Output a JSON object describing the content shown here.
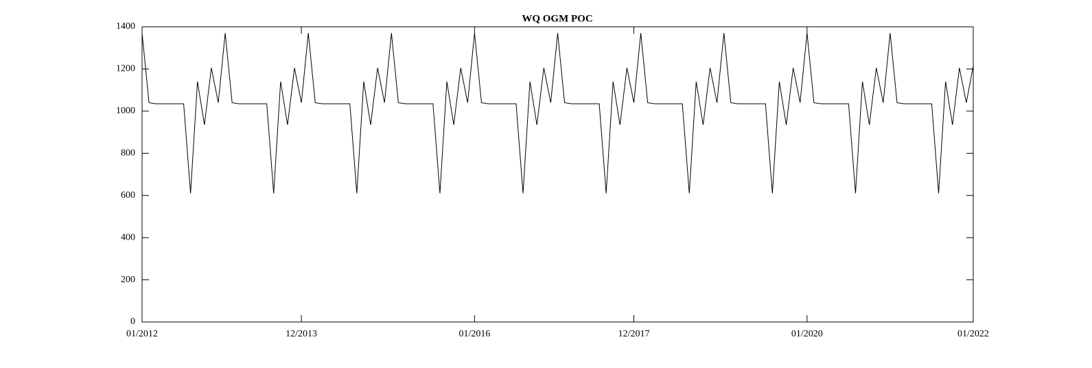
{
  "chart_data": {
    "type": "line",
    "title": "WQ OGM POC",
    "x": [
      "01/2012",
      "02/2012",
      "03/2012",
      "04/2012",
      "05/2012",
      "06/2012",
      "07/2012",
      "08/2012",
      "09/2012",
      "10/2012",
      "11/2012",
      "12/2012",
      "01/2013",
      "02/2013",
      "03/2013",
      "04/2013",
      "05/2013",
      "06/2013",
      "07/2013",
      "08/2013",
      "09/2013",
      "10/2013",
      "11/2013",
      "12/2013",
      "01/2014",
      "02/2014",
      "03/2014",
      "04/2014",
      "05/2014",
      "06/2014",
      "07/2014",
      "08/2014",
      "09/2014",
      "10/2014",
      "11/2014",
      "12/2014",
      "01/2015",
      "02/2015",
      "03/2015",
      "04/2015",
      "05/2015",
      "06/2015",
      "07/2015",
      "08/2015",
      "09/2015",
      "10/2015",
      "11/2015",
      "12/2015",
      "01/2016",
      "02/2016",
      "03/2016",
      "04/2016",
      "05/2016",
      "06/2016",
      "07/2016",
      "08/2016",
      "09/2016",
      "10/2016",
      "11/2016",
      "12/2016",
      "01/2017",
      "02/2017",
      "03/2017",
      "04/2017",
      "05/2017",
      "06/2017",
      "07/2017",
      "08/2017",
      "09/2017",
      "10/2017",
      "11/2017",
      "12/2017",
      "01/2018",
      "02/2018",
      "03/2018",
      "04/2018",
      "05/2018",
      "06/2018",
      "07/2018",
      "08/2018",
      "09/2018",
      "10/2018",
      "11/2018",
      "12/2018",
      "01/2019",
      "02/2019",
      "03/2019",
      "04/2019",
      "05/2019",
      "06/2019",
      "07/2019",
      "08/2019",
      "09/2019",
      "10/2019",
      "11/2019",
      "12/2019",
      "01/2020",
      "02/2020",
      "03/2020",
      "04/2020",
      "05/2020",
      "06/2020",
      "07/2020",
      "08/2020",
      "09/2020",
      "10/2020",
      "11/2020",
      "12/2020",
      "01/2021",
      "02/2021",
      "03/2021",
      "04/2021",
      "05/2021",
      "06/2021",
      "07/2021",
      "08/2021",
      "09/2021",
      "10/2021",
      "11/2021",
      "12/2021",
      "01/2022"
    ],
    "values": [
      1370,
      1040,
      1035,
      1035,
      1035,
      1035,
      1035,
      610,
      1140,
      935,
      1205,
      1040,
      1370,
      1040,
      1035,
      1035,
      1035,
      1035,
      1035,
      610,
      1140,
      935,
      1205,
      1040,
      1370,
      1040,
      1035,
      1035,
      1035,
      1035,
      1035,
      610,
      1140,
      935,
      1205,
      1040,
      1370,
      1040,
      1035,
      1035,
      1035,
      1035,
      1035,
      610,
      1140,
      935,
      1205,
      1040,
      1370,
      1040,
      1035,
      1035,
      1035,
      1035,
      1035,
      610,
      1140,
      935,
      1205,
      1040,
      1370,
      1040,
      1035,
      1035,
      1035,
      1035,
      1035,
      610,
      1140,
      935,
      1205,
      1040,
      1370,
      1040,
      1035,
      1035,
      1035,
      1035,
      1035,
      610,
      1140,
      935,
      1205,
      1040,
      1370,
      1040,
      1035,
      1035,
      1035,
      1035,
      1035,
      610,
      1140,
      935,
      1205,
      1040,
      1370,
      1040,
      1035,
      1035,
      1035,
      1035,
      1035,
      610,
      1140,
      935,
      1205,
      1040,
      1370,
      1040,
      1035,
      1035,
      1035,
      1035,
      1035,
      610,
      1140,
      935,
      1205,
      1040,
      1215
    ],
    "color": "#000000",
    "ylim": [
      0,
      1400
    ],
    "yticks": [
      0,
      200,
      400,
      600,
      800,
      1000,
      1200,
      1400
    ],
    "xticks": [
      "01/2012",
      "12/2013",
      "01/2016",
      "12/2017",
      "01/2020",
      "01/2022"
    ],
    "grid": false
  }
}
